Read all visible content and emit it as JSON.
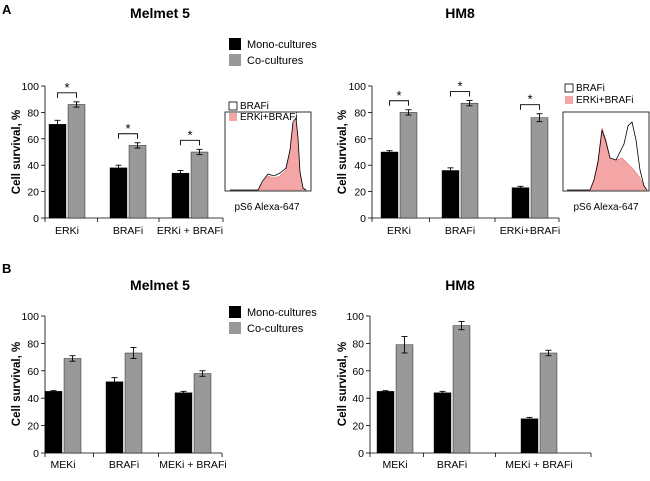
{
  "panels": {
    "a": "A",
    "b": "B"
  },
  "legend": {
    "mono": "Mono-cultures",
    "co": "Co-cultures",
    "mono_color": "#000000",
    "co_color": "#999999"
  },
  "histogram_legend": {
    "braf": "BRAFi",
    "erk_braf": "ERKi+BRAFi",
    "xlabel": "pS6 Alexa-647",
    "fill_color": "#f4a6a6"
  },
  "chart_data": [
    {
      "id": "a-melmet5",
      "type": "bar",
      "title": "Melmet 5",
      "ylabel": "Cell survival, %",
      "ylim": [
        0,
        100
      ],
      "yticks": [
        0,
        20,
        40,
        60,
        80,
        100
      ],
      "categories": [
        "ERKi",
        "BRAFi",
        "ERKi + BRAFi"
      ],
      "series": [
        {
          "name": "Mono-cultures",
          "values": [
            71,
            38,
            34
          ],
          "errors": [
            3,
            2,
            2
          ]
        },
        {
          "name": "Co-cultures",
          "values": [
            86,
            55,
            50
          ],
          "errors": [
            2,
            2,
            2
          ]
        }
      ],
      "significance": [
        "*",
        "*",
        "*"
      ]
    },
    {
      "id": "a-hm8",
      "type": "bar",
      "title": "HM8",
      "ylabel": "Cell survival, %",
      "ylim": [
        0,
        100
      ],
      "yticks": [
        0,
        20,
        40,
        60,
        80,
        100
      ],
      "categories": [
        "ERKi",
        "BRAFi",
        "ERKi+BRAFi"
      ],
      "series": [
        {
          "name": "Mono-cultures",
          "values": [
            50,
            36,
            23
          ],
          "errors": [
            1,
            2,
            1
          ]
        },
        {
          "name": "Co-cultures",
          "values": [
            80,
            87,
            76
          ],
          "errors": [
            2,
            2,
            3
          ]
        }
      ],
      "significance": [
        "*",
        "*",
        "*"
      ]
    },
    {
      "id": "b-melmet5",
      "type": "bar",
      "title": "Melmet 5",
      "ylabel": "Cell survival, %",
      "ylim": [
        0,
        100
      ],
      "yticks": [
        0,
        20,
        40,
        60,
        80,
        100
      ],
      "categories": [
        "MEKi",
        "BRAFi",
        "MEKi + BRAFi"
      ],
      "series": [
        {
          "name": "Mono-cultures",
          "values": [
            45,
            52,
            44
          ],
          "errors": [
            0.5,
            3,
            1
          ]
        },
        {
          "name": "Co-cultures",
          "values": [
            69,
            73,
            58
          ],
          "errors": [
            2,
            4,
            2
          ]
        }
      ],
      "significance": []
    },
    {
      "id": "b-hm8",
      "type": "bar",
      "title": "HM8",
      "ylabel": "Cell survival, %",
      "ylim": [
        0,
        100
      ],
      "yticks": [
        0,
        20,
        40,
        60,
        80,
        100
      ],
      "categories": [
        "MEKi",
        "BRAFi",
        "MEKi + BRAFi"
      ],
      "series": [
        {
          "name": "Mono-cultures",
          "values": [
            45,
            44,
            25
          ],
          "errors": [
            0.5,
            1,
            1
          ]
        },
        {
          "name": "Co-cultures",
          "values": [
            79,
            93,
            73
          ],
          "errors": [
            6,
            3,
            2
          ]
        }
      ],
      "significance": []
    }
  ]
}
